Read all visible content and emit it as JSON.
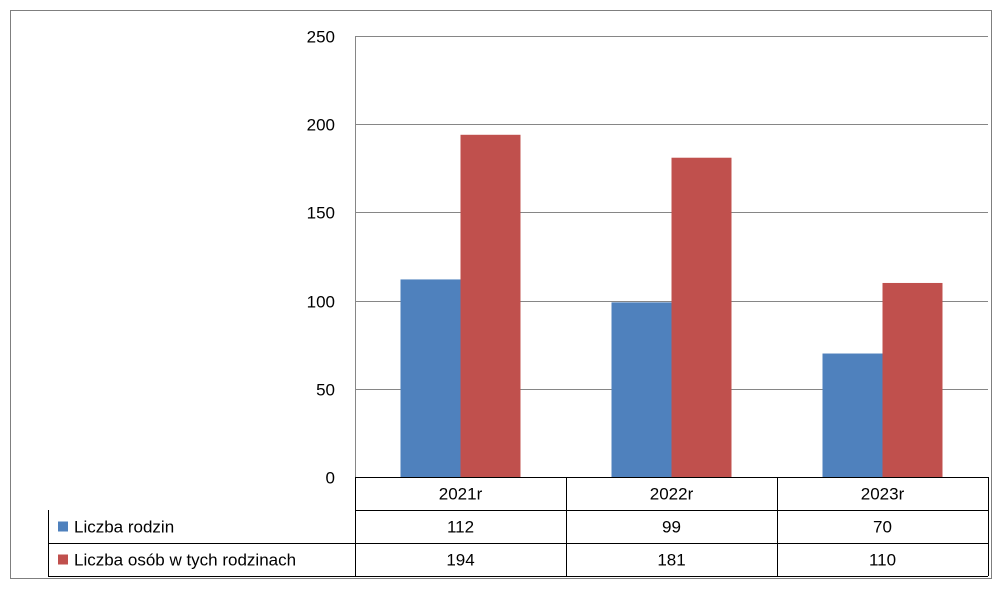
{
  "chart_data": {
    "type": "bar",
    "title": "",
    "xlabel": "",
    "ylabel": "",
    "ylim": [
      0,
      250
    ],
    "yticks": [
      0,
      50,
      100,
      150,
      200,
      250
    ],
    "grid": true,
    "legend": "data-table",
    "categories": [
      "2021r",
      "2022r",
      "2023r"
    ],
    "series": [
      {
        "name": "Liczba rodzin",
        "values": [
          112,
          99,
          70
        ],
        "color": "#4F81BD"
      },
      {
        "name": "Liczba osób w tych rodzinach",
        "values": [
          194,
          181,
          110
        ],
        "color": "#C0504D"
      }
    ]
  }
}
